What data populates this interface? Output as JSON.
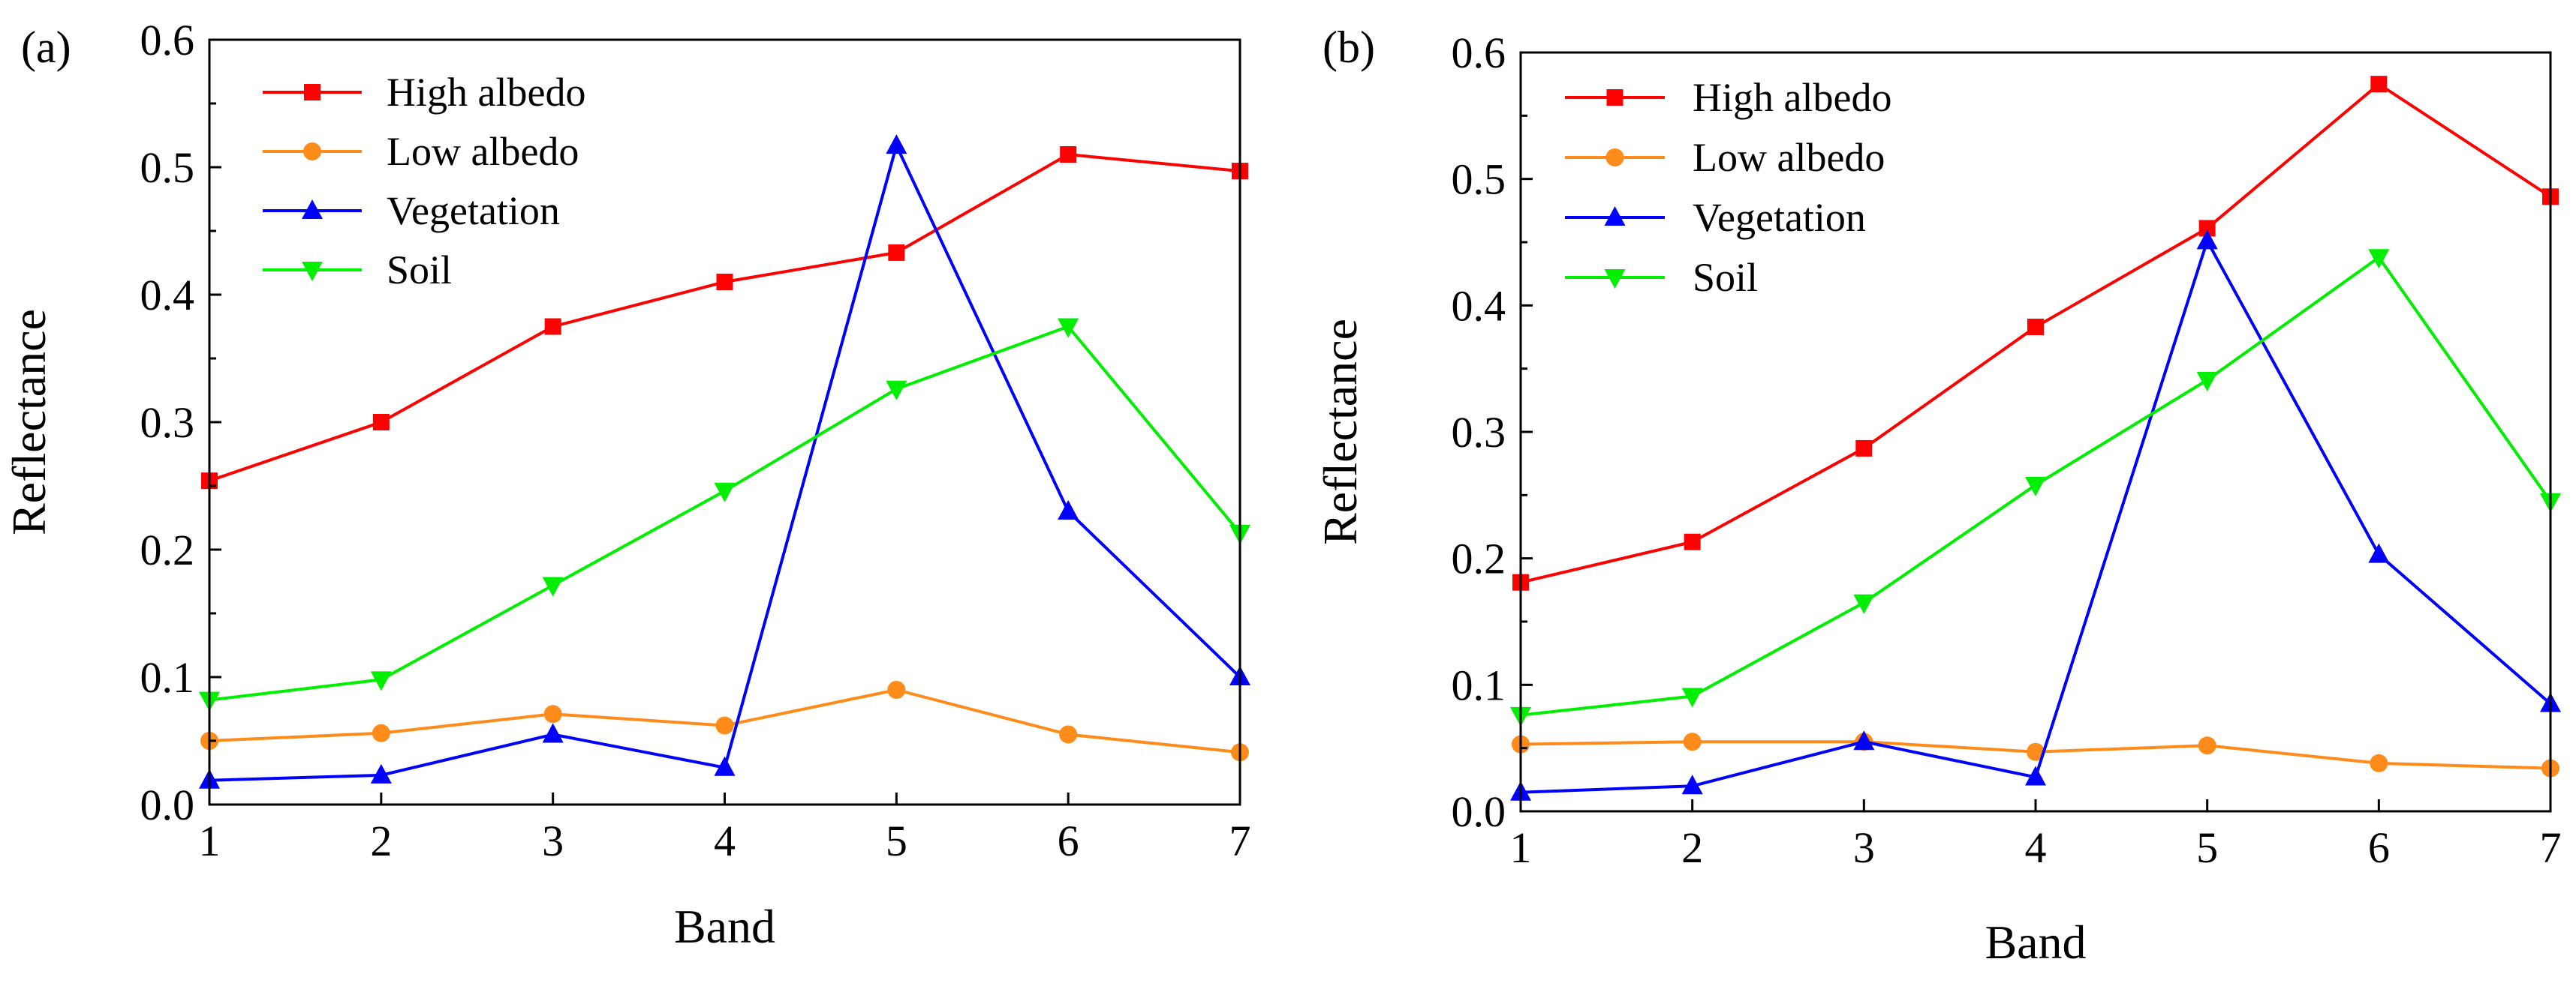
{
  "chart_data": [
    {
      "type": "line",
      "panel_label": "(a)",
      "xlabel": "Band",
      "ylabel": "Reflectance",
      "x": [
        1,
        2,
        3,
        4,
        5,
        6,
        7
      ],
      "x_tick_labels": [
        "1",
        "2",
        "3",
        "4",
        "5",
        "6",
        "7"
      ],
      "xlim": [
        1,
        7
      ],
      "ylim": [
        0.0,
        0.6
      ],
      "y_ticks": [
        0.0,
        0.1,
        0.2,
        0.3,
        0.4,
        0.5,
        0.6
      ],
      "y_tick_labels": [
        "0.0",
        "0.1",
        "0.2",
        "0.3",
        "0.4",
        "0.5",
        "0.6"
      ],
      "grid": false,
      "legend_position": "top-left",
      "series": [
        {
          "name": "High albedo",
          "color": "#ff0000",
          "marker": "square",
          "values": [
            0.254,
            0.3,
            0.375,
            0.41,
            0.433,
            0.51,
            0.497
          ]
        },
        {
          "name": "Low albedo",
          "color": "#ff8c1a",
          "marker": "circle",
          "values": [
            0.05,
            0.056,
            0.071,
            0.062,
            0.09,
            0.055,
            0.041
          ]
        },
        {
          "name": "Vegetation",
          "color": "#0000ff",
          "marker": "triangle-up",
          "values": [
            0.019,
            0.023,
            0.055,
            0.029,
            0.517,
            0.23,
            0.1
          ]
        },
        {
          "name": "Soil",
          "color": "#00ee00",
          "marker": "triangle-down",
          "values": [
            0.082,
            0.098,
            0.172,
            0.246,
            0.326,
            0.375,
            0.213
          ]
        }
      ]
    },
    {
      "type": "line",
      "panel_label": "(b)",
      "xlabel": "Band",
      "ylabel": "Reflectance",
      "x": [
        1,
        2,
        3,
        4,
        5,
        6,
        7
      ],
      "x_tick_labels": [
        "1",
        "2",
        "3",
        "4",
        "5",
        "6",
        "7"
      ],
      "xlim": [
        1,
        7
      ],
      "ylim": [
        0.0,
        0.6
      ],
      "y_ticks": [
        0.0,
        0.1,
        0.2,
        0.3,
        0.4,
        0.5,
        0.6
      ],
      "y_tick_labels": [
        "0.0",
        "0.1",
        "0.2",
        "0.3",
        "0.4",
        "0.5",
        "0.6"
      ],
      "grid": false,
      "legend_position": "top-left",
      "series": [
        {
          "name": "High albedo",
          "color": "#ff0000",
          "marker": "square",
          "values": [
            0.181,
            0.213,
            0.287,
            0.383,
            0.461,
            0.575,
            0.486
          ]
        },
        {
          "name": "Low albedo",
          "color": "#ff8c1a",
          "marker": "circle",
          "values": [
            0.053,
            0.055,
            0.055,
            0.047,
            0.052,
            0.038,
            0.034
          ]
        },
        {
          "name": "Vegetation",
          "color": "#0000ff",
          "marker": "triangle-up",
          "values": [
            0.015,
            0.02,
            0.055,
            0.027,
            0.451,
            0.203,
            0.085
          ]
        },
        {
          "name": "Soil",
          "color": "#00ee00",
          "marker": "triangle-down",
          "values": [
            0.076,
            0.091,
            0.165,
            0.258,
            0.341,
            0.438,
            0.245
          ]
        }
      ]
    }
  ]
}
